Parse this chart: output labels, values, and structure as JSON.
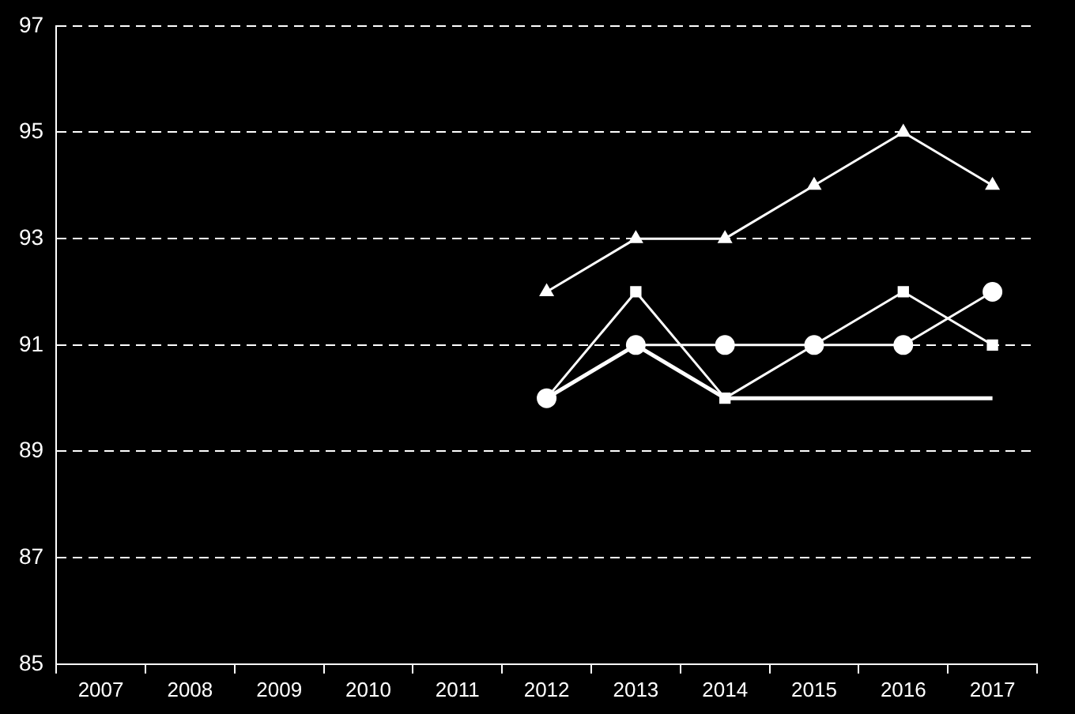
{
  "chart_data": {
    "type": "line",
    "categories": [
      "2007",
      "2008",
      "2009",
      "2010",
      "2011",
      "2012",
      "2013",
      "2014",
      "2015",
      "2016",
      "2017"
    ],
    "series": [
      {
        "color": "#ffffff",
        "marker": "triangle",
        "values": [
          null,
          null,
          null,
          null,
          null,
          92,
          93,
          93,
          94,
          95,
          94
        ]
      },
      {
        "color": "#ffffff",
        "marker": "circle",
        "values": [
          null,
          null,
          null,
          null,
          null,
          90,
          91,
          91,
          91,
          91,
          92
        ]
      },
      {
        "color": "#ffffff",
        "marker": "square",
        "values": [
          null,
          null,
          null,
          null,
          null,
          90,
          92,
          90,
          91,
          92,
          91
        ]
      },
      {
        "color": "#ffffff",
        "marker": "none",
        "values": [
          null,
          null,
          null,
          null,
          null,
          90,
          91,
          90,
          90,
          90,
          90
        ]
      }
    ],
    "ylim": [
      85,
      97
    ],
    "yticks": [
      85,
      87,
      89,
      91,
      93,
      95,
      97
    ],
    "grid": "y",
    "legend": false
  }
}
